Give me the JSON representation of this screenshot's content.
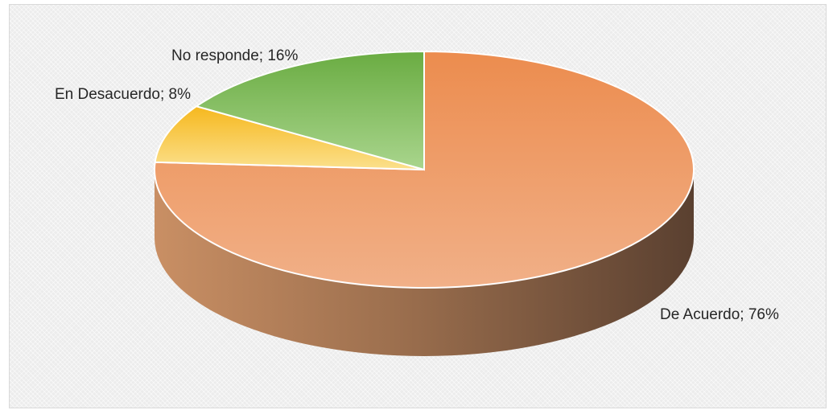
{
  "chart_data": {
    "type": "pie",
    "style": "3d",
    "slices": [
      {
        "label": "De Acuerdo",
        "value": 76,
        "text": "De Acuerdo; 76%",
        "color": "#f0a878"
      },
      {
        "label": "En Desacuerdo",
        "value": 8,
        "text": "En Desacuerdo; 8%",
        "color": "#fbd25a"
      },
      {
        "label": "No responde",
        "value": 16,
        "text": "No responde; 16%",
        "color": "#8fc96f"
      }
    ]
  }
}
